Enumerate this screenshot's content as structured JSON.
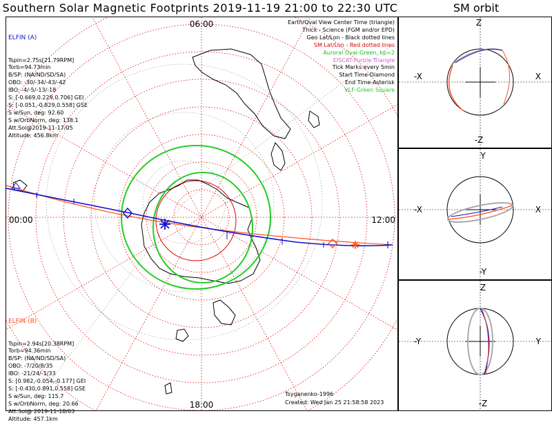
{
  "title": "Southern Solar Magnetic Footprints 2019-11-19 21:00 to 22:30 UTC",
  "sm_orbit_title": "SM orbit",
  "map": {
    "mlt_labels": {
      "top": "06:00",
      "left": "00:00",
      "right": "12:00",
      "bottom": "18:00"
    },
    "colors": {
      "elfin_a": "#1010cc",
      "elfin_b": "#ff5020",
      "auroral": "#22cc22",
      "sm_grid": "#dd0000",
      "geo_grid": "#000000"
    }
  },
  "elfin_a": {
    "name": "ELFIN (A)",
    "lines": [
      "Tspin=2.75s[21.79RPM]",
      "Torb=94.73min",
      "B/SP: (NA/ND/SD/SA)",
      "OBO: -30/-34/-43/-42",
      "IBO: -4/-5/-13/-18",
      "S: [-0.669,0.229,0.706] GEI",
      "S: [-0.051,-0.829,0.558] GSE",
      "S w/Sun, deg: 92.60",
      "S w/OrbNorm, deg: 138.1",
      "Att.Sol@2019-11-17/05",
      "Altitude: 456.8km"
    ]
  },
  "elfin_b": {
    "name": "ELFIN (B)",
    "lines": [
      "Tspin=2.94s[20.38RPM]",
      "Torb=94.36min",
      "B/SP: (NA/ND/SD/SA)",
      "OBO: -7/20/8/35",
      "IBO: -21/24/-1/33",
      "S: [0.982,-0.054,-0.177] GEI",
      "S: [-0.430,0.891,0.558] GSE",
      "S w/Sun, deg: 115.7",
      "S w/OrbNorm, deg: 20.66",
      "Att.Sol@ 2019-11-18/03",
      "Altitude: 457.1km"
    ]
  },
  "legend": [
    {
      "text": "Earth/Oval View Center Time (triangle)",
      "color": "#000000"
    },
    {
      "text": "Thick - Science (FGM and/or EPD)",
      "color": "#000000"
    },
    {
      "text": "Geo Lat/Lon - Black dotted lines",
      "color": "#000000"
    },
    {
      "text": "SM Lat/Lon - Red dotted lines",
      "color": "#dd0000"
    },
    {
      "text": "Auroral Oval-Green, kp=2",
      "color": "#22bb22"
    },
    {
      "text": "EISCAT-Purple Triangle",
      "color": "#cc66cc"
    },
    {
      "text": "Tick Marks every 5min",
      "color": "#000000"
    },
    {
      "text": "Start Time-Diamond",
      "color": "#000000"
    },
    {
      "text": "End Time-Asterisk",
      "color": "#000000"
    },
    {
      "text": "VLF-Green Square",
      "color": "#22cc22"
    }
  ],
  "credits": {
    "author": "Tsyganenko-1996",
    "created": "Created: Wed Jan 25 21:58:58 2023"
  },
  "orbit_panels": [
    {
      "top": "Z",
      "bottom": "-Z",
      "left": "-X",
      "right": "X"
    },
    {
      "top": "Y",
      "bottom": "-Y",
      "left": "-X",
      "right": "X"
    },
    {
      "top": "Z",
      "bottom": "-Z",
      "left": "-Y",
      "right": "Y"
    }
  ]
}
